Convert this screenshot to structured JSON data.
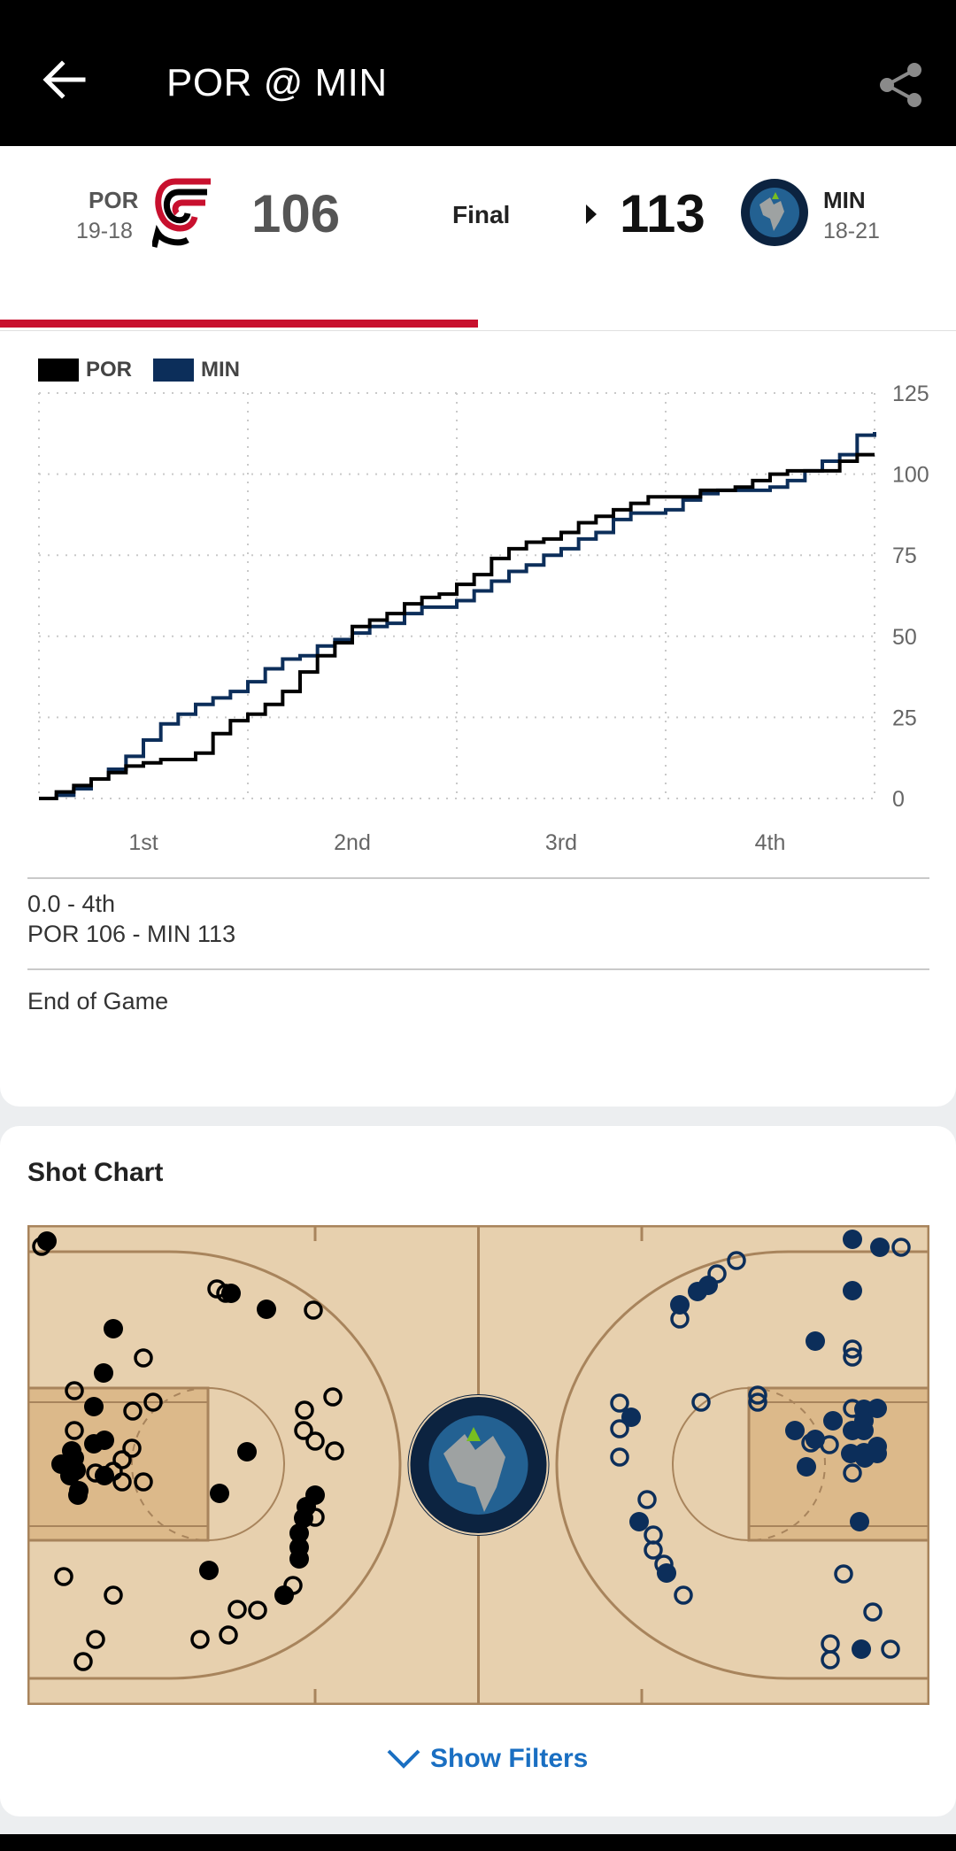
{
  "app_bar": {
    "title": "POR @ MIN",
    "back_icon": "arrow-left-icon",
    "share_icon": "share-icon"
  },
  "scoreboard": {
    "away": {
      "abbr": "POR",
      "record": "19-18",
      "score": "106",
      "logo": "trail-blazers-logo"
    },
    "home": {
      "abbr": "MIN",
      "record": "18-21",
      "score": "113",
      "logo": "timberwolves-logo"
    },
    "status": "Final"
  },
  "game_flow": {
    "legend": [
      {
        "team": "POR",
        "color": "#000000"
      },
      {
        "team": "MIN",
        "color": "#0c2e5a"
      }
    ],
    "selected_play": {
      "time": "0.0 - 4th",
      "score": "POR 106 - MIN 113",
      "description": "End of Game"
    }
  },
  "chart_data": {
    "type": "line",
    "xlabel": "",
    "ylabel": "",
    "x_range": [
      0,
      48
    ],
    "ylim": [
      0,
      125
    ],
    "y_ticks": [
      "0",
      "25",
      "50",
      "75",
      "100",
      "125"
    ],
    "x_ticks": [
      {
        "label": "1st",
        "x": 6
      },
      {
        "label": "2nd",
        "x": 18
      },
      {
        "label": "3rd",
        "x": 30
      },
      {
        "label": "4th",
        "x": 42
      }
    ],
    "grid": true,
    "legend_position": "top-left",
    "series": [
      {
        "name": "POR",
        "color": "#000000",
        "points": [
          [
            0,
            0
          ],
          [
            1,
            2
          ],
          [
            2,
            4
          ],
          [
            3,
            6
          ],
          [
            4,
            8
          ],
          [
            5,
            10
          ],
          [
            6,
            11
          ],
          [
            7,
            12
          ],
          [
            8,
            12
          ],
          [
            9,
            14
          ],
          [
            10,
            20
          ],
          [
            11,
            24
          ],
          [
            12,
            26
          ],
          [
            13,
            29
          ],
          [
            14,
            33
          ],
          [
            15,
            39
          ],
          [
            16,
            44
          ],
          [
            17,
            48
          ],
          [
            18,
            53
          ],
          [
            19,
            55
          ],
          [
            20,
            57
          ],
          [
            21,
            60
          ],
          [
            22,
            62
          ],
          [
            23,
            63
          ],
          [
            24,
            66
          ],
          [
            25,
            69
          ],
          [
            26,
            74
          ],
          [
            27,
            77
          ],
          [
            28,
            79
          ],
          [
            29,
            80
          ],
          [
            30,
            82
          ],
          [
            31,
            85
          ],
          [
            32,
            87
          ],
          [
            33,
            89
          ],
          [
            34,
            91
          ],
          [
            35,
            93
          ],
          [
            36,
            93
          ],
          [
            37,
            93
          ],
          [
            38,
            95
          ],
          [
            39,
            95
          ],
          [
            40,
            96
          ],
          [
            41,
            98
          ],
          [
            42,
            100
          ],
          [
            43,
            101
          ],
          [
            44,
            101
          ],
          [
            45,
            101
          ],
          [
            46,
            104
          ],
          [
            47,
            106
          ],
          [
            48,
            106
          ]
        ]
      },
      {
        "name": "MIN",
        "color": "#0c2e5a",
        "points": [
          [
            0,
            0
          ],
          [
            1,
            1
          ],
          [
            2,
            3
          ],
          [
            3,
            6
          ],
          [
            4,
            9
          ],
          [
            5,
            13
          ],
          [
            6,
            18
          ],
          [
            7,
            23
          ],
          [
            8,
            26
          ],
          [
            9,
            29
          ],
          [
            10,
            31
          ],
          [
            11,
            33
          ],
          [
            12,
            36
          ],
          [
            13,
            40
          ],
          [
            14,
            43
          ],
          [
            15,
            44
          ],
          [
            16,
            47
          ],
          [
            17,
            49
          ],
          [
            18,
            51
          ],
          [
            19,
            53
          ],
          [
            20,
            54
          ],
          [
            21,
            57
          ],
          [
            22,
            59
          ],
          [
            23,
            59
          ],
          [
            24,
            61
          ],
          [
            25,
            64
          ],
          [
            26,
            67
          ],
          [
            27,
            70
          ],
          [
            28,
            72
          ],
          [
            29,
            75
          ],
          [
            30,
            77
          ],
          [
            31,
            80
          ],
          [
            32,
            82
          ],
          [
            33,
            86
          ],
          [
            34,
            88
          ],
          [
            35,
            88
          ],
          [
            36,
            89
          ],
          [
            37,
            92
          ],
          [
            38,
            94
          ],
          [
            39,
            95
          ],
          [
            40,
            95
          ],
          [
            41,
            95
          ],
          [
            42,
            96
          ],
          [
            43,
            98
          ],
          [
            44,
            101
          ],
          [
            45,
            104
          ],
          [
            46,
            106
          ],
          [
            47,
            112
          ],
          [
            48,
            113
          ]
        ]
      }
    ]
  },
  "shot_chart": {
    "title": "Shot Chart",
    "center_logo": "timberwolves-logo",
    "filters_label": "Show Filters",
    "filters_icon": "chevron-down-icon",
    "colors": {
      "court": "#e7d0ae",
      "paint": "#dcb98a",
      "lines": "#a8845c",
      "por": "#000000",
      "min": "#0c2e5a"
    },
    "shots": {
      "por": [
        [
          22,
          18,
          1
        ],
        [
          16,
          24,
          0
        ],
        [
          214,
          72,
          0
        ],
        [
          230,
          77,
          1
        ],
        [
          224,
          77,
          0
        ],
        [
          97,
          117,
          1
        ],
        [
          270,
          95,
          1
        ],
        [
          323,
          96,
          0
        ],
        [
          131,
          150,
          0
        ],
        [
          86,
          167,
          1
        ],
        [
          53,
          187,
          0
        ],
        [
          75,
          205,
          1
        ],
        [
          142,
          200,
          0
        ],
        [
          119,
          210,
          0
        ],
        [
          313,
          209,
          0
        ],
        [
          345,
          194,
          0
        ],
        [
          312,
          232,
          0
        ],
        [
          325,
          244,
          0
        ],
        [
          53,
          232,
          0
        ],
        [
          87,
          243,
          1
        ],
        [
          50,
          255,
          1
        ],
        [
          75,
          247,
          1
        ],
        [
          53,
          263,
          1
        ],
        [
          107,
          265,
          0
        ],
        [
          118,
          252,
          0
        ],
        [
          248,
          256,
          1
        ],
        [
          347,
          255,
          0
        ],
        [
          38,
          270,
          1
        ],
        [
          55,
          277,
          1
        ],
        [
          77,
          280,
          0
        ],
        [
          97,
          278,
          0
        ],
        [
          87,
          283,
          1
        ],
        [
          107,
          290,
          0
        ],
        [
          48,
          283,
          1
        ],
        [
          58,
          300,
          1
        ],
        [
          131,
          290,
          0
        ],
        [
          57,
          305,
          1
        ],
        [
          217,
          303,
          1
        ],
        [
          325,
          305,
          1
        ],
        [
          315,
          318,
          1
        ],
        [
          325,
          330,
          0
        ],
        [
          312,
          331,
          1
        ],
        [
          307,
          348,
          1
        ],
        [
          307,
          364,
          1
        ],
        [
          307,
          377,
          1
        ],
        [
          41,
          397,
          0
        ],
        [
          205,
          390,
          1
        ],
        [
          97,
          418,
          0
        ],
        [
          300,
          407,
          0
        ],
        [
          290,
          418,
          1
        ],
        [
          260,
          435,
          0
        ],
        [
          237,
          434,
          0
        ],
        [
          227,
          463,
          0
        ],
        [
          77,
          468,
          0
        ],
        [
          195,
          468,
          0
        ],
        [
          63,
          493,
          0
        ]
      ],
      "min": [
        [
          932,
          16,
          1
        ],
        [
          963,
          25,
          1
        ],
        [
          987,
          25,
          0
        ],
        [
          801,
          40,
          0
        ],
        [
          779,
          55,
          0
        ],
        [
          769,
          68,
          1
        ],
        [
          757,
          75,
          1
        ],
        [
          932,
          74,
          1
        ],
        [
          737,
          90,
          1
        ],
        [
          737,
          106,
          0
        ],
        [
          890,
          131,
          1
        ],
        [
          932,
          140,
          0
        ],
        [
          932,
          149,
          0
        ],
        [
          825,
          192,
          0
        ],
        [
          825,
          200,
          0
        ],
        [
          669,
          201,
          0
        ],
        [
          761,
          200,
          0
        ],
        [
          932,
          207,
          0
        ],
        [
          960,
          207,
          1
        ],
        [
          945,
          208,
          1
        ],
        [
          682,
          217,
          1
        ],
        [
          669,
          230,
          0
        ],
        [
          910,
          221,
          1
        ],
        [
          945,
          221,
          1
        ],
        [
          867,
          232,
          1
        ],
        [
          932,
          232,
          1
        ],
        [
          945,
          232,
          1
        ],
        [
          885,
          246,
          0
        ],
        [
          890,
          242,
          1
        ],
        [
          906,
          248,
          0
        ],
        [
          960,
          250,
          1
        ],
        [
          945,
          257,
          1
        ],
        [
          669,
          262,
          0
        ],
        [
          930,
          258,
          1
        ],
        [
          960,
          258,
          1
        ],
        [
          946,
          263,
          1
        ],
        [
          880,
          273,
          1
        ],
        [
          932,
          280,
          0
        ],
        [
          700,
          310,
          0
        ],
        [
          691,
          335,
          1
        ],
        [
          940,
          335,
          1
        ],
        [
          707,
          350,
          0
        ],
        [
          707,
          367,
          0
        ],
        [
          719,
          383,
          0
        ],
        [
          722,
          393,
          1
        ],
        [
          922,
          394,
          0
        ],
        [
          741,
          418,
          0
        ],
        [
          955,
          437,
          0
        ],
        [
          907,
          473,
          0
        ],
        [
          942,
          479,
          1
        ],
        [
          975,
          479,
          0
        ],
        [
          907,
          491,
          0
        ]
      ]
    }
  }
}
